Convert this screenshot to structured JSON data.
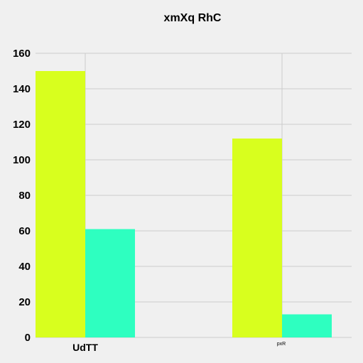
{
  "chart_data": {
    "type": "bar",
    "title": "xmXq RhC",
    "xlabel": "",
    "ylabel": "",
    "categories": [
      "UdTT",
      "pxR"
    ],
    "series": [
      {
        "values": [
          150,
          112
        ],
        "color": "#d8ff1e"
      },
      {
        "values": [
          61,
          13
        ],
        "color": "#2effc0"
      }
    ],
    "ylim": [
      0,
      160
    ],
    "yticks": [
      0,
      20,
      40,
      60,
      80,
      100,
      120,
      140,
      160
    ],
    "grid": true,
    "background": "#f0f0f0",
    "grid_color": "#cccccc"
  }
}
